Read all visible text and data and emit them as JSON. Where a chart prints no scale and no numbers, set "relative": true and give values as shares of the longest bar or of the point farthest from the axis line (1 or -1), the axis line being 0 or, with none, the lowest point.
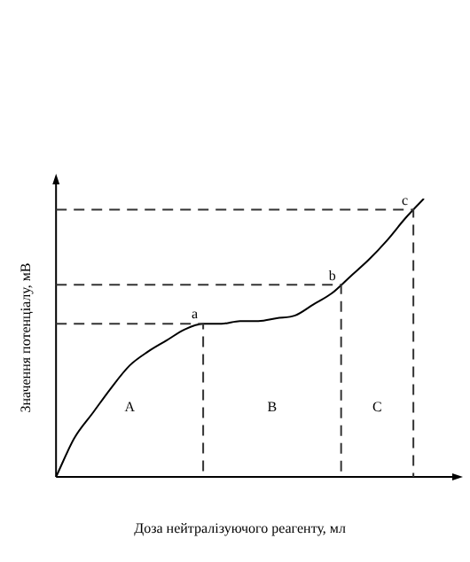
{
  "chart_data": {
    "type": "line",
    "relative": true,
    "xlabel": "Доза нейтралізуючого реагенту, мл",
    "ylabel": "Значення потенціалу, мВ",
    "categories": [
      null,
      null,
      null,
      null,
      null,
      null,
      null,
      null,
      null,
      null,
      null,
      null,
      null,
      null,
      null,
      null,
      null,
      null,
      null,
      null,
      null
    ],
    "series": [
      {
        "color": "#000000",
        "values": [
          0,
          0.14,
          0.23,
          0.32,
          0.4,
          0.45,
          0.49,
          0.53,
          0.55,
          0.55,
          0.56,
          0.56,
          0.57,
          0.58,
          0.62,
          0.66,
          0.72,
          0.78,
          0.85,
          0.93,
          1
        ]
      }
    ],
    "ref_lines": [
      {
        "axis": "y",
        "value": 0.55,
        "label": "a",
        "line_style": "dashed",
        "color": "#333333"
      },
      {
        "axis": "y",
        "value": 0.69,
        "label": "b",
        "line_style": "dashed",
        "color": "#333333"
      },
      {
        "axis": "y",
        "value": 0.96,
        "label": "c",
        "line_style": "dashed",
        "color": "#333333"
      }
    ],
    "annotations": [
      "A",
      "B",
      "C"
    ],
    "grid": false,
    "legend": false,
    "marker": "none",
    "line_style": "solid"
  }
}
